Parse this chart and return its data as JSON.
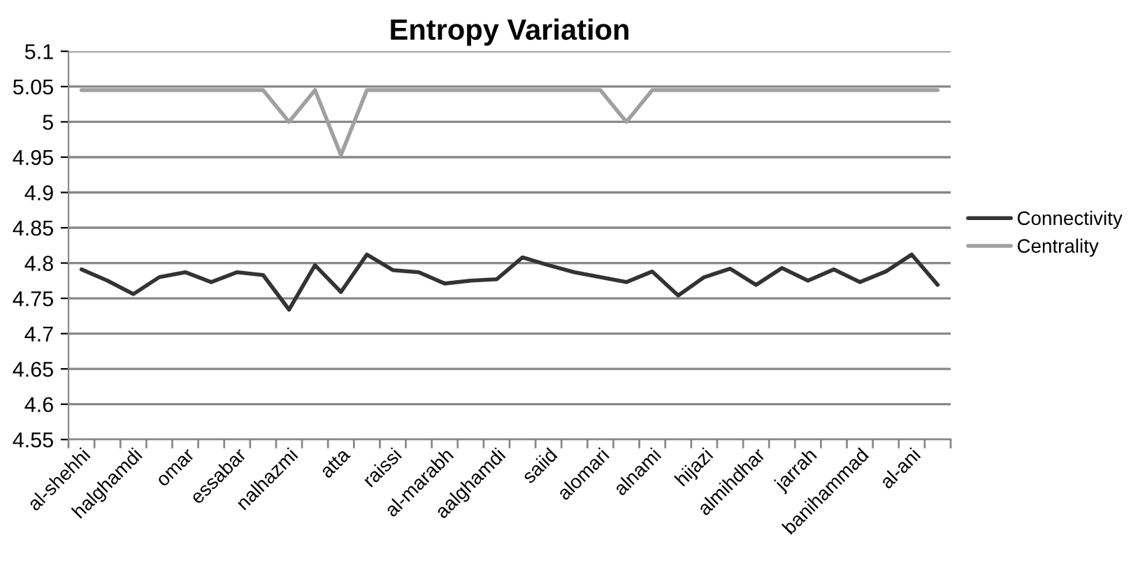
{
  "chart_data": {
    "type": "line",
    "title": "Entropy Variation",
    "categories": [
      "al-shehhi",
      null,
      "halghamdi",
      null,
      "omar",
      null,
      "essabar",
      null,
      "nalhazmi",
      null,
      "atta",
      null,
      "raissi",
      null,
      "al-marabh",
      null,
      "aalghamdi",
      null,
      "saiid",
      null,
      "alomari",
      null,
      "alnami",
      null,
      "hijazi",
      null,
      "almihdhar",
      null,
      "jarrah",
      null,
      "banihammad",
      null,
      "al-ani",
      null
    ],
    "series": [
      {
        "name": "Connectivity",
        "color": "#333333",
        "values": [
          4.791,
          4.775,
          4.756,
          4.78,
          4.787,
          4.773,
          4.787,
          4.783,
          4.734,
          4.797,
          4.759,
          4.812,
          4.79,
          4.787,
          4.771,
          4.775,
          4.777,
          4.808,
          4.797,
          4.787,
          4.78,
          4.773,
          4.788,
          4.754,
          4.78,
          4.792,
          4.769,
          4.793,
          4.775,
          4.791,
          4.773,
          4.788,
          4.812,
          4.769
        ]
      },
      {
        "name": "Centrality",
        "color": "#a0a0a0",
        "values": [
          5.045,
          5.045,
          5.045,
          5.045,
          5.045,
          5.045,
          5.045,
          5.045,
          5.0,
          5.045,
          4.953,
          5.045,
          5.045,
          5.045,
          5.045,
          5.045,
          5.045,
          5.045,
          5.045,
          5.045,
          5.045,
          5.0,
          5.045,
          5.045,
          5.045,
          5.045,
          5.045,
          5.045,
          5.045,
          5.045,
          5.045,
          5.045,
          5.045,
          5.045
        ]
      }
    ],
    "ylim": [
      4.55,
      5.1
    ],
    "yticks": [
      4.55,
      4.6,
      4.65,
      4.7,
      4.75,
      4.8,
      4.85,
      4.9,
      4.95,
      5,
      5.05,
      5.1
    ],
    "grid": "y",
    "legend": "right",
    "marker": "none",
    "line_style": "solid"
  }
}
